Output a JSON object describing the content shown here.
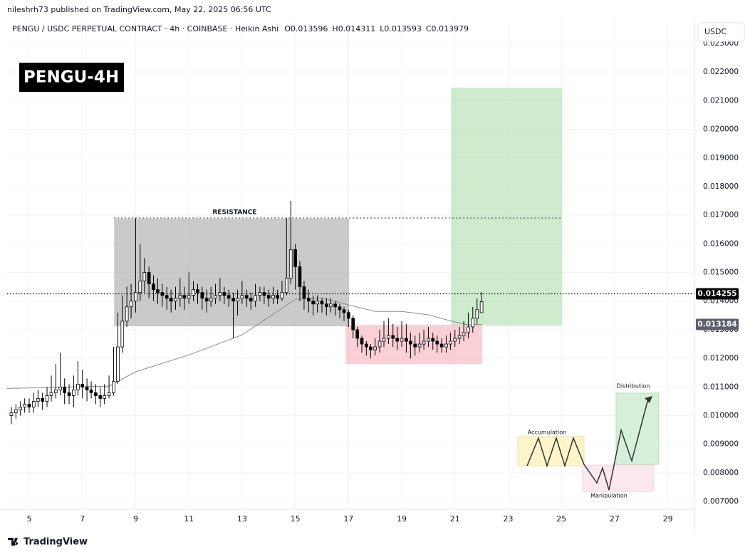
{
  "header": {
    "publisher": "nileshrh73 published on TradingView.com, May 22, 2025 06:56 UTC",
    "symbol": "PENGU / USDC PERPETUAL CONTRACT · 4h · COINBASE · Heikin Ashi",
    "legend_keys": [
      "O",
      "H",
      "L",
      "C"
    ],
    "currency": "USDC",
    "badge": "PENGU-4H"
  },
  "footer": {
    "brand": "TradingView"
  },
  "chart_data": {
    "type": "candlestick",
    "xlim": [
      4.17,
      30.0
    ],
    "xticks": [
      5,
      7,
      9,
      11,
      13,
      15,
      17,
      19,
      21,
      23,
      25,
      27,
      29
    ],
    "ylim": [
      0.00673,
      0.02377
    ],
    "yticks": [
      {
        "value": 0.007,
        "label": "0.007000"
      },
      {
        "value": 0.008,
        "label": "0.008000"
      },
      {
        "value": 0.009,
        "label": "0.009000"
      },
      {
        "value": 0.01,
        "label": "0.010000"
      },
      {
        "value": 0.011,
        "label": "0.011000"
      },
      {
        "value": 0.012,
        "label": "0.012000"
      },
      {
        "value": 0.013,
        "label": "0.013000"
      },
      {
        "value": 0.014,
        "label": "0.014000"
      },
      {
        "value": 0.015,
        "label": "0.015000"
      },
      {
        "value": 0.016,
        "label": "0.016000"
      },
      {
        "value": 0.017,
        "label": "0.017000"
      },
      {
        "value": 0.018,
        "label": "0.018000"
      },
      {
        "value": 0.019,
        "label": "0.019000"
      },
      {
        "value": 0.02,
        "label": "0.020000"
      },
      {
        "value": 0.021,
        "label": "0.021000"
      },
      {
        "value": 0.022,
        "label": "0.022000"
      },
      {
        "value": 0.023,
        "label": "0.023000"
      }
    ],
    "grid": true,
    "up_color": "#ffffff",
    "down_color": "#000000",
    "candles": [
      [
        4.33,
        0.01,
        0.0103,
        0.0097,
        0.0101
      ],
      [
        4.5,
        0.0101,
        0.0104,
        0.0099,
        0.0102
      ],
      [
        4.67,
        0.0102,
        0.0105,
        0.01,
        0.0103
      ],
      [
        4.83,
        0.0103,
        0.0106,
        0.0101,
        0.0104
      ],
      [
        5.0,
        0.0104,
        0.0106,
        0.0101,
        0.0103
      ],
      [
        5.17,
        0.0103,
        0.0108,
        0.0101,
        0.0105
      ],
      [
        5.33,
        0.0105,
        0.0109,
        0.0103,
        0.0106
      ],
      [
        5.5,
        0.0106,
        0.0108,
        0.0102,
        0.0105
      ],
      [
        5.67,
        0.0105,
        0.011,
        0.0103,
        0.0107
      ],
      [
        5.83,
        0.0107,
        0.0114,
        0.0105,
        0.0108
      ],
      [
        6.0,
        0.0108,
        0.0118,
        0.0106,
        0.0109
      ],
      [
        6.17,
        0.0109,
        0.0122,
        0.0107,
        0.011
      ],
      [
        6.33,
        0.011,
        0.0113,
        0.0104,
        0.0108
      ],
      [
        6.5,
        0.0108,
        0.0111,
        0.0104,
        0.0107
      ],
      [
        6.67,
        0.0107,
        0.0114,
        0.0103,
        0.0109
      ],
      [
        6.83,
        0.0109,
        0.0119,
        0.0107,
        0.0111
      ],
      [
        7.0,
        0.0111,
        0.0116,
        0.0106,
        0.011
      ],
      [
        7.17,
        0.011,
        0.0113,
        0.0105,
        0.0109
      ],
      [
        7.33,
        0.0109,
        0.0112,
        0.0106,
        0.0108
      ],
      [
        7.5,
        0.0108,
        0.0111,
        0.0104,
        0.0107
      ],
      [
        7.67,
        0.0107,
        0.011,
        0.0103,
        0.0106
      ],
      [
        7.83,
        0.0106,
        0.0111,
        0.0104,
        0.0107
      ],
      [
        8.0,
        0.0107,
        0.0114,
        0.0106,
        0.0108
      ],
      [
        8.17,
        0.0108,
        0.0124,
        0.0107,
        0.0112
      ],
      [
        8.33,
        0.0112,
        0.0136,
        0.0111,
        0.0124
      ],
      [
        8.5,
        0.0124,
        0.0142,
        0.0122,
        0.0133
      ],
      [
        8.67,
        0.0133,
        0.0145,
        0.0131,
        0.0138
      ],
      [
        8.83,
        0.0138,
        0.0146,
        0.0134,
        0.014
      ],
      [
        9.0,
        0.014,
        0.0169,
        0.0136,
        0.0143
      ],
      [
        9.17,
        0.0143,
        0.016,
        0.014,
        0.0147
      ],
      [
        9.33,
        0.0147,
        0.0155,
        0.0143,
        0.015
      ],
      [
        9.5,
        0.015,
        0.0152,
        0.0141,
        0.0146
      ],
      [
        9.67,
        0.0146,
        0.0149,
        0.014,
        0.0144
      ],
      [
        9.83,
        0.0144,
        0.0148,
        0.0139,
        0.0143
      ],
      [
        10.0,
        0.0143,
        0.0146,
        0.0138,
        0.0142
      ],
      [
        10.17,
        0.0142,
        0.0145,
        0.0137,
        0.0141
      ],
      [
        10.33,
        0.0141,
        0.0144,
        0.0136,
        0.014
      ],
      [
        10.5,
        0.014,
        0.0145,
        0.0137,
        0.0141
      ],
      [
        10.67,
        0.0141,
        0.0148,
        0.0138,
        0.0142
      ],
      [
        10.83,
        0.0142,
        0.0145,
        0.0137,
        0.0141
      ],
      [
        11.0,
        0.0141,
        0.015,
        0.0139,
        0.0142
      ],
      [
        11.17,
        0.0142,
        0.0147,
        0.014,
        0.0144
      ],
      [
        11.33,
        0.0144,
        0.0146,
        0.0139,
        0.0143
      ],
      [
        11.5,
        0.0143,
        0.0145,
        0.0137,
        0.0141
      ],
      [
        11.67,
        0.0141,
        0.0144,
        0.0136,
        0.014
      ],
      [
        11.83,
        0.014,
        0.0145,
        0.0138,
        0.0141
      ],
      [
        12.0,
        0.0141,
        0.0146,
        0.0139,
        0.0142
      ],
      [
        12.17,
        0.0142,
        0.0148,
        0.014,
        0.0143
      ],
      [
        12.33,
        0.0143,
        0.0145,
        0.0139,
        0.0142
      ],
      [
        12.5,
        0.0142,
        0.0144,
        0.0138,
        0.0141
      ],
      [
        12.67,
        0.0141,
        0.0143,
        0.0127,
        0.014
      ],
      [
        12.83,
        0.014,
        0.0144,
        0.0135,
        0.0141
      ],
      [
        13.0,
        0.0141,
        0.0147,
        0.0139,
        0.0142
      ],
      [
        13.17,
        0.0142,
        0.0144,
        0.0138,
        0.0141
      ],
      [
        13.33,
        0.0141,
        0.0143,
        0.0137,
        0.014
      ],
      [
        13.5,
        0.014,
        0.0146,
        0.0138,
        0.0142
      ],
      [
        13.67,
        0.0142,
        0.0145,
        0.014,
        0.0143
      ],
      [
        13.83,
        0.0143,
        0.0145,
        0.0139,
        0.0142
      ],
      [
        14.0,
        0.0142,
        0.0144,
        0.0138,
        0.0141
      ],
      [
        14.17,
        0.0141,
        0.0145,
        0.0139,
        0.0142
      ],
      [
        14.33,
        0.0142,
        0.0144,
        0.0139,
        0.0141
      ],
      [
        14.5,
        0.0141,
        0.0147,
        0.014,
        0.0143
      ],
      [
        14.67,
        0.0143,
        0.0169,
        0.0142,
        0.0148
      ],
      [
        14.83,
        0.0148,
        0.0175,
        0.0146,
        0.0158
      ],
      [
        15.0,
        0.0158,
        0.016,
        0.0144,
        0.0152
      ],
      [
        15.17,
        0.0152,
        0.0154,
        0.014,
        0.0145
      ],
      [
        15.33,
        0.0145,
        0.0147,
        0.0137,
        0.0141
      ],
      [
        15.5,
        0.0141,
        0.0144,
        0.0136,
        0.014
      ],
      [
        15.67,
        0.014,
        0.0142,
        0.0135,
        0.0139
      ],
      [
        15.83,
        0.0139,
        0.0142,
        0.0136,
        0.014
      ],
      [
        16.0,
        0.014,
        0.0141,
        0.0136,
        0.0139
      ],
      [
        16.17,
        0.0139,
        0.0141,
        0.0135,
        0.0138
      ],
      [
        16.33,
        0.0138,
        0.0141,
        0.0136,
        0.0139
      ],
      [
        16.5,
        0.0139,
        0.014,
        0.0135,
        0.0138
      ],
      [
        16.67,
        0.0138,
        0.0139,
        0.0134,
        0.0137
      ],
      [
        16.83,
        0.0137,
        0.0138,
        0.0133,
        0.0136
      ],
      [
        17.0,
        0.0136,
        0.0137,
        0.0131,
        0.0134
      ],
      [
        17.17,
        0.0134,
        0.0135,
        0.0127,
        0.013
      ],
      [
        17.33,
        0.013,
        0.0131,
        0.0124,
        0.0127
      ],
      [
        17.5,
        0.0127,
        0.0128,
        0.0122,
        0.0125
      ],
      [
        17.67,
        0.0125,
        0.0126,
        0.0121,
        0.0124
      ],
      [
        17.83,
        0.0124,
        0.0125,
        0.012,
        0.0123
      ],
      [
        18.0,
        0.0123,
        0.0127,
        0.0121,
        0.0124
      ],
      [
        18.17,
        0.0124,
        0.013,
        0.0122,
        0.0126
      ],
      [
        18.33,
        0.0126,
        0.0133,
        0.0124,
        0.0127
      ],
      [
        18.5,
        0.0127,
        0.0134,
        0.0125,
        0.0128
      ],
      [
        18.67,
        0.0128,
        0.0132,
        0.0124,
        0.0127
      ],
      [
        18.83,
        0.0127,
        0.0131,
        0.0123,
        0.0126
      ],
      [
        19.0,
        0.0126,
        0.0133,
        0.0124,
        0.0127
      ],
      [
        19.17,
        0.0127,
        0.0132,
        0.0122,
        0.0126
      ],
      [
        19.33,
        0.0126,
        0.0129,
        0.012,
        0.0125
      ],
      [
        19.5,
        0.0125,
        0.0128,
        0.0121,
        0.0124
      ],
      [
        19.67,
        0.0124,
        0.0129,
        0.0122,
        0.0125
      ],
      [
        19.83,
        0.0125,
        0.013,
        0.0123,
        0.0126
      ],
      [
        20.0,
        0.0126,
        0.0131,
        0.0124,
        0.0127
      ],
      [
        20.17,
        0.0127,
        0.0129,
        0.0123,
        0.0126
      ],
      [
        20.33,
        0.0126,
        0.0128,
        0.0122,
        0.0125
      ],
      [
        20.5,
        0.0125,
        0.0127,
        0.0122,
        0.0124
      ],
      [
        20.67,
        0.0124,
        0.0128,
        0.0122,
        0.0125
      ],
      [
        20.83,
        0.0125,
        0.0129,
        0.0123,
        0.0126
      ],
      [
        21.0,
        0.0126,
        0.013,
        0.0124,
        0.0127
      ],
      [
        21.17,
        0.0127,
        0.0131,
        0.0125,
        0.0128
      ],
      [
        21.33,
        0.0128,
        0.0133,
        0.0126,
        0.0129
      ],
      [
        21.5,
        0.0129,
        0.0136,
        0.0127,
        0.0131
      ],
      [
        21.67,
        0.0131,
        0.0138,
        0.0129,
        0.0134
      ],
      [
        21.83,
        0.0134,
        0.0141,
        0.0132,
        0.0137
      ],
      [
        22.0,
        0.013596,
        0.014311,
        0.013593,
        0.013979
      ]
    ],
    "ma": {
      "color": "#8c8c8c",
      "x": [
        4.17,
        8.0,
        9.0,
        11.0,
        13.0,
        14.0,
        15.0,
        16.0,
        17.0,
        18.0,
        19.0,
        20.0,
        21.0,
        21.5,
        22.0
      ],
      "values": [
        0.01095,
        0.01103,
        0.01153,
        0.01212,
        0.01282,
        0.01344,
        0.01406,
        0.01411,
        0.01387,
        0.01364,
        0.01364,
        0.01352,
        0.01327,
        0.01317,
        0.01319
      ]
    },
    "zones": [
      {
        "x": [
          8.19,
          17.02
        ],
        "y": [
          0.01312,
          0.01688
        ],
        "color": "#9e9e9e"
      },
      {
        "x": [
          16.89,
          22.03
        ],
        "y": [
          0.0118,
          0.01317
        ],
        "color": "#f7a9b2"
      },
      {
        "x": [
          20.85,
          25.03
        ],
        "y": [
          0.01314,
          0.02145
        ],
        "color": "#a5dba6"
      }
    ],
    "resistance": {
      "label": "RESISTANCE",
      "value": 0.0169,
      "x": [
        8.19,
        25.05
      ]
    },
    "price_lines": [
      {
        "value": 0.014255,
        "color": "#000000",
        "dotted": true
      },
      {
        "value": 0.013184,
        "color": "#5d606b",
        "dotted": false
      }
    ]
  },
  "annotations": {
    "accumulation": "Accumulation",
    "manipulation": "Manipulation",
    "distribution": "Distribution"
  }
}
